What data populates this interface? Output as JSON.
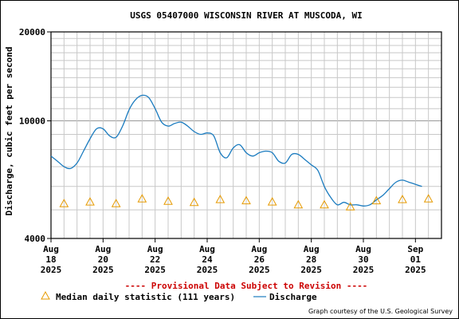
{
  "chart_data": {
    "type": "line",
    "title": "USGS 05407000 WISCONSIN RIVER AT MUSCODA, WI",
    "ylabel": "Discharge, cubic feet per second",
    "yscale": "log",
    "ylim": [
      4000,
      20000
    ],
    "yticks": [
      {
        "value": 4000,
        "label": "4000"
      },
      {
        "value": 10000,
        "label": "10000"
      },
      {
        "value": 20000,
        "label": "20000"
      }
    ],
    "xlim": [
      "2025-08-18",
      "2025-09-02"
    ],
    "xticks": [
      {
        "date": "2025-08-18",
        "label": [
          "Aug",
          "18",
          "2025"
        ]
      },
      {
        "date": "2025-08-20",
        "label": [
          "Aug",
          "20",
          "2025"
        ]
      },
      {
        "date": "2025-08-22",
        "label": [
          "Aug",
          "22",
          "2025"
        ]
      },
      {
        "date": "2025-08-24",
        "label": [
          "Aug",
          "24",
          "2025"
        ]
      },
      {
        "date": "2025-08-26",
        "label": [
          "Aug",
          "26",
          "2025"
        ]
      },
      {
        "date": "2025-08-28",
        "label": [
          "Aug",
          "28",
          "2025"
        ]
      },
      {
        "date": "2025-08-30",
        "label": [
          "Aug",
          "30",
          "2025"
        ]
      },
      {
        "date": "2025-09-01",
        "label": [
          "Sep",
          "01",
          "2025"
        ]
      }
    ],
    "grid": true,
    "series": [
      {
        "name": "Discharge",
        "color": "#1a7bbf",
        "style": "line",
        "x": [
          "2025-08-18 00:00",
          "2025-08-18 06:00",
          "2025-08-18 12:00",
          "2025-08-18 18:00",
          "2025-08-19 00:00",
          "2025-08-19 06:00",
          "2025-08-19 12:00",
          "2025-08-19 18:00",
          "2025-08-20 00:00",
          "2025-08-20 06:00",
          "2025-08-20 12:00",
          "2025-08-20 18:00",
          "2025-08-21 00:00",
          "2025-08-21 06:00",
          "2025-08-21 12:00",
          "2025-08-21 18:00",
          "2025-08-22 00:00",
          "2025-08-22 06:00",
          "2025-08-22 12:00",
          "2025-08-22 18:00",
          "2025-08-23 00:00",
          "2025-08-23 06:00",
          "2025-08-23 12:00",
          "2025-08-23 18:00",
          "2025-08-24 00:00",
          "2025-08-24 06:00",
          "2025-08-24 12:00",
          "2025-08-24 18:00",
          "2025-08-25 00:00",
          "2025-08-25 06:00",
          "2025-08-25 12:00",
          "2025-08-25 18:00",
          "2025-08-26 00:00",
          "2025-08-26 06:00",
          "2025-08-26 12:00",
          "2025-08-26 18:00",
          "2025-08-27 00:00",
          "2025-08-27 06:00",
          "2025-08-27 12:00",
          "2025-08-27 18:00",
          "2025-08-28 00:00",
          "2025-08-28 06:00",
          "2025-08-28 12:00",
          "2025-08-28 18:00",
          "2025-08-29 00:00",
          "2025-08-29 06:00",
          "2025-08-29 12:00",
          "2025-08-29 18:00",
          "2025-08-30 00:00",
          "2025-08-30 06:00",
          "2025-08-30 12:00",
          "2025-08-30 18:00",
          "2025-08-31 00:00",
          "2025-08-31 06:00",
          "2025-08-31 12:00",
          "2025-08-31 18:00",
          "2025-09-01 00:00",
          "2025-09-01 06:00"
        ],
        "values": [
          7600,
          7300,
          7000,
          6900,
          7200,
          7900,
          8700,
          9400,
          9400,
          8900,
          8800,
          9600,
          10900,
          11800,
          12200,
          12000,
          11000,
          9900,
          9600,
          9800,
          9900,
          9600,
          9200,
          9000,
          9100,
          8900,
          7800,
          7500,
          8100,
          8300,
          7800,
          7600,
          7800,
          7900,
          7800,
          7300,
          7200,
          7700,
          7700,
          7400,
          7100,
          6800,
          6000,
          5500,
          5200,
          5300,
          5200,
          5200,
          5150,
          5200,
          5400,
          5600,
          5900,
          6200,
          6300,
          6200,
          6100,
          6000
        ]
      },
      {
        "name": "Median daily statistic (111 years)",
        "color": "#e69a00",
        "style": "triangle",
        "x": [
          "2025-08-18 12:00",
          "2025-08-19 12:00",
          "2025-08-20 12:00",
          "2025-08-21 12:00",
          "2025-08-22 12:00",
          "2025-08-23 12:00",
          "2025-08-24 12:00",
          "2025-08-25 12:00",
          "2025-08-26 12:00",
          "2025-08-27 12:00",
          "2025-08-28 12:00",
          "2025-08-29 12:00",
          "2025-08-30 12:00",
          "2025-08-31 12:00",
          "2025-09-01 12:00"
        ],
        "values": [
          5250,
          5320,
          5250,
          5450,
          5350,
          5300,
          5420,
          5370,
          5320,
          5200,
          5200,
          5120,
          5370,
          5420,
          5450
        ]
      }
    ],
    "annotations": {
      "provisional": "---- Provisional Data Subject to Revision ----",
      "credit": "Graph courtesy of the U.S. Geological Survey"
    },
    "legend_placement": "bottom-left",
    "colors": {
      "provisional": "#cc0000",
      "grid": "#c8c8c8",
      "discharge": "#1a7bbf",
      "median": "#e69a00"
    }
  }
}
